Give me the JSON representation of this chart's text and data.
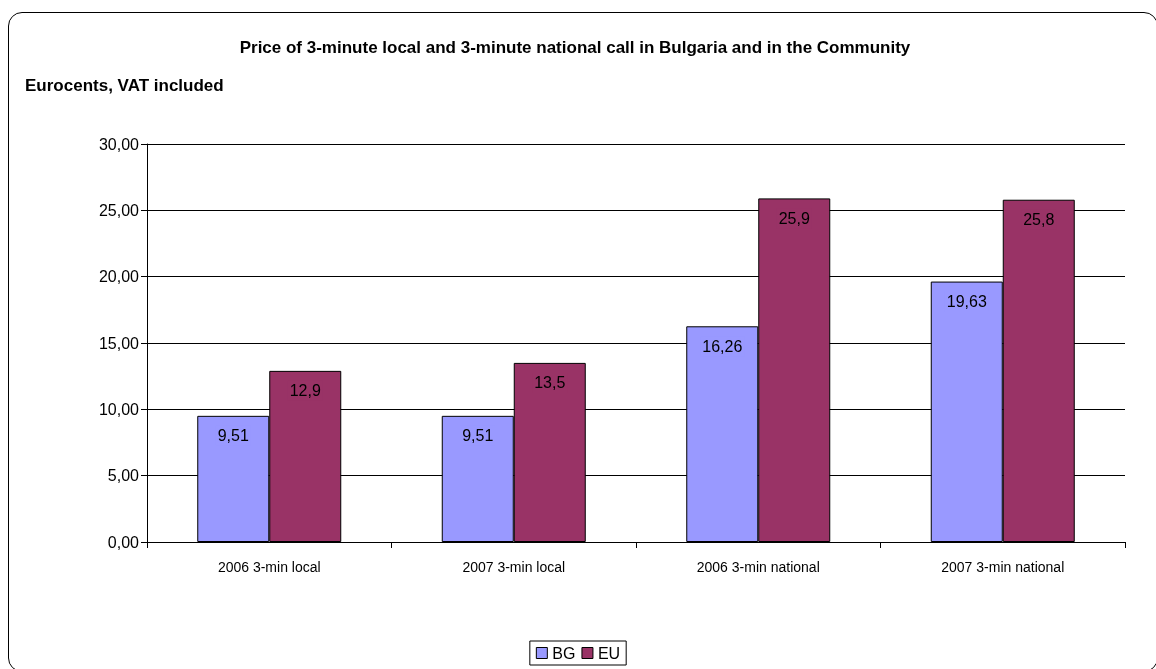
{
  "chart_data": {
    "type": "bar",
    "title": "Price of 3-minute local and 3-minute national call in Bulgaria and in the Community",
    "subtitle": "Eurocents, VAT included",
    "categories": [
      "2006 3-min local",
      "2007 3-min local",
      "2006 3-min national",
      "2007 3-min national"
    ],
    "series": [
      {
        "name": "BG",
        "color": "#9999ff",
        "values": [
          9.51,
          9.51,
          16.26,
          19.63
        ],
        "value_labels": [
          "9,51",
          "9,51",
          "16,26",
          "19,63"
        ]
      },
      {
        "name": "EU",
        "color": "#993366",
        "values": [
          12.9,
          13.5,
          25.9,
          25.8
        ],
        "value_labels": [
          "12,9",
          "13,5",
          "25,9",
          "25,8"
        ]
      }
    ],
    "ylim": [
      0,
      30
    ],
    "yticks": [
      {
        "value": 0,
        "label": "0,00"
      },
      {
        "value": 5,
        "label": "5,00"
      },
      {
        "value": 10,
        "label": "10,00"
      },
      {
        "value": 15,
        "label": "15,00"
      },
      {
        "value": 20,
        "label": "20,00"
      },
      {
        "value": 25,
        "label": "25,00"
      },
      {
        "value": 30,
        "label": "30,00"
      }
    ],
    "grid": "y",
    "legend": "bottom"
  }
}
